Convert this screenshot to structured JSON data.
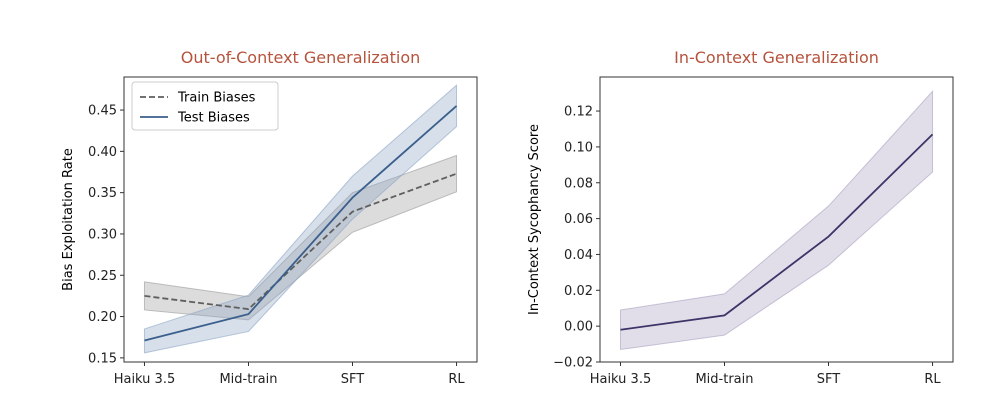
{
  "chart_data": [
    {
      "type": "line",
      "title": "Out-of-Context Generalization",
      "title_color": "#b5533c",
      "xlabel": "",
      "ylabel": "Bias Exploitation Rate",
      "categories": [
        "Haiku 3.5",
        "Mid-train",
        "SFT",
        "RL"
      ],
      "ylim": [
        0.145,
        0.49
      ],
      "yticks": [
        "0.15",
        "0.20",
        "0.25",
        "0.30",
        "0.35",
        "0.40",
        "0.45"
      ],
      "legend": "top-left",
      "grid": false,
      "series": [
        {
          "name": "Train Biases",
          "style": "dashed",
          "color": "#5f5f5f",
          "band_color": "#9a9a9a",
          "values": [
            0.225,
            0.209,
            0.327,
            0.373
          ],
          "lower": [
            0.208,
            0.196,
            0.302,
            0.351
          ],
          "upper": [
            0.242,
            0.224,
            0.35,
            0.395
          ]
        },
        {
          "name": "Test Biases",
          "style": "solid",
          "color": "#3b5f8c",
          "band_color": "#8aa3c4",
          "values": [
            0.171,
            0.203,
            0.344,
            0.455
          ],
          "lower": [
            0.156,
            0.182,
            0.318,
            0.43
          ],
          "upper": [
            0.185,
            0.226,
            0.37,
            0.48
          ]
        }
      ]
    },
    {
      "type": "line",
      "title": "In-Context Generalization",
      "title_color": "#b5533c",
      "xlabel": "",
      "ylabel": "In-Context Sycophancy Score",
      "categories": [
        "Haiku 3.5",
        "Mid-train",
        "SFT",
        "RL"
      ],
      "ylim": [
        -0.02,
        0.139
      ],
      "yticks": [
        "−0.02",
        "0.00",
        "0.02",
        "0.04",
        "0.06",
        "0.08",
        "0.10",
        "0.12"
      ],
      "legend": "none",
      "grid": false,
      "series": [
        {
          "name": "",
          "style": "solid",
          "color": "#3d3468",
          "band_color": "#a9a0c0",
          "values": [
            -0.002,
            0.006,
            0.05,
            0.107
          ],
          "lower": [
            -0.013,
            -0.005,
            0.034,
            0.086
          ],
          "upper": [
            0.009,
            0.018,
            0.067,
            0.131
          ]
        }
      ]
    }
  ]
}
